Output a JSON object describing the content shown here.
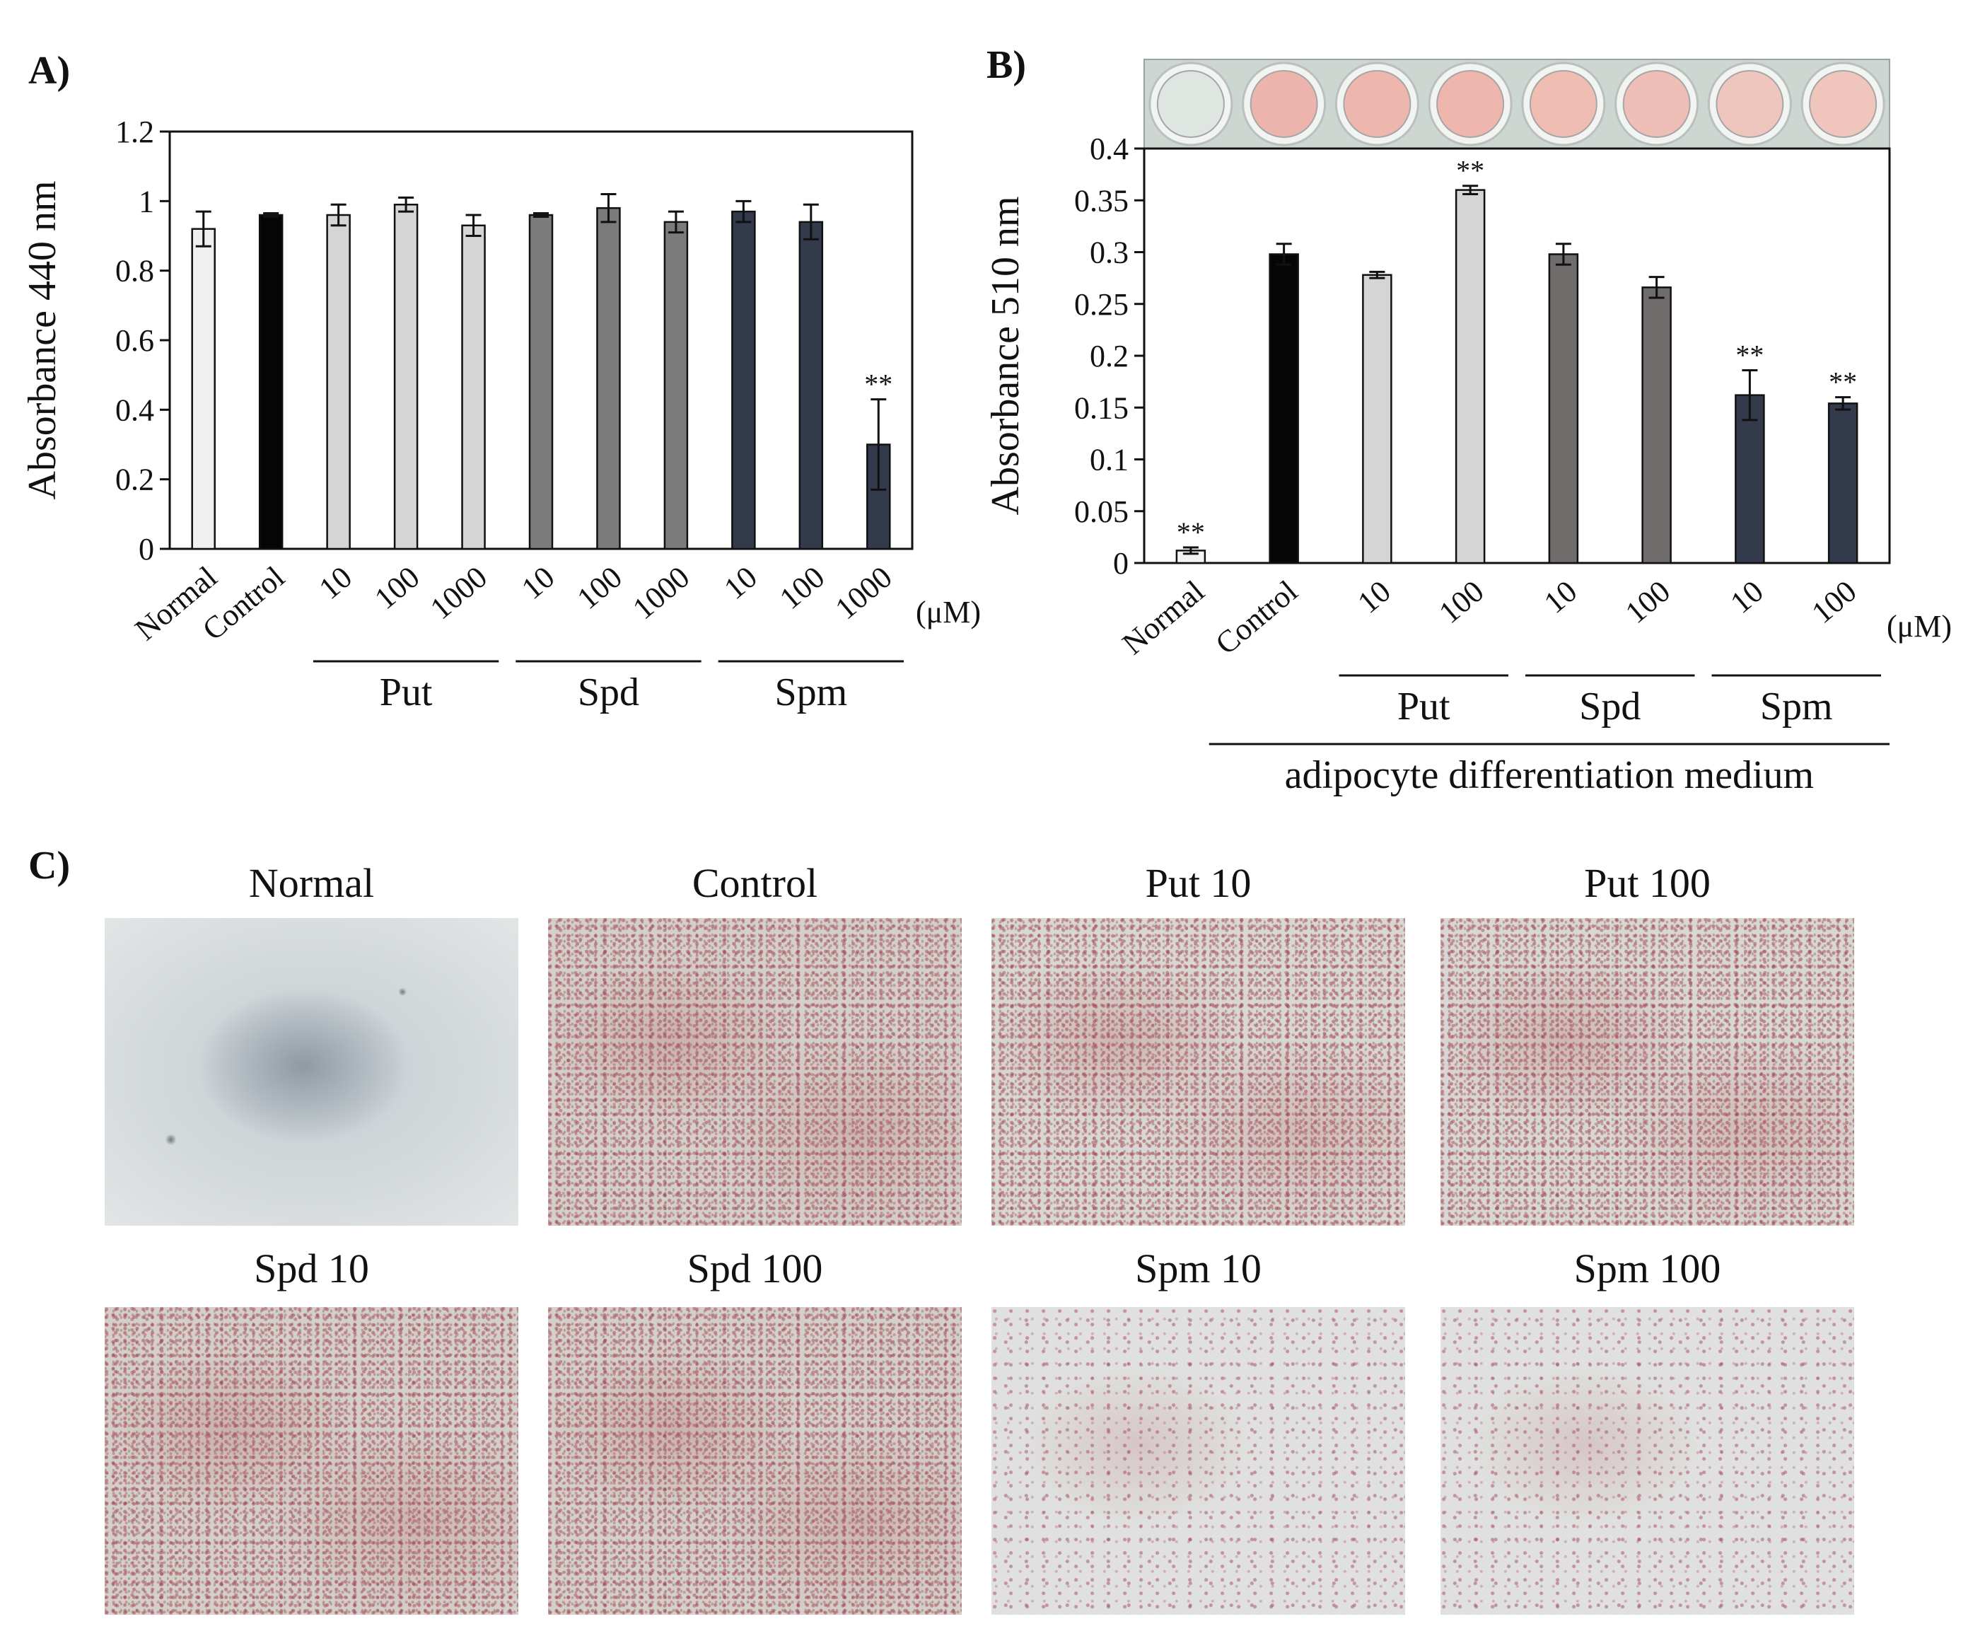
{
  "panel_labels": {
    "a": "A)",
    "b": "B)",
    "c": "C)"
  },
  "chart_data": [
    {
      "type": "bar",
      "panel": "A)",
      "ylabel": "Absorbance 440 nm",
      "ylim": [
        0,
        1.2
      ],
      "yticks": [
        "0",
        "0.2",
        "0.4",
        "0.6",
        "0.8",
        "1",
        "1.2"
      ],
      "categories": [
        "Normal",
        "Control",
        "10",
        "100",
        "1000",
        "10",
        "100",
        "1000",
        "10",
        "100",
        "1000"
      ],
      "values": [
        0.92,
        0.96,
        0.96,
        0.99,
        0.93,
        0.96,
        0.98,
        0.94,
        0.97,
        0.94,
        0.3
      ],
      "errors": [
        0.05,
        0.005,
        0.03,
        0.02,
        0.03,
        0.005,
        0.04,
        0.03,
        0.03,
        0.05,
        0.13
      ],
      "colors": [
        "#efefef",
        "#050505",
        "#d5d5d5",
        "#d5d5d5",
        "#d5d5d5",
        "#7b7b7b",
        "#7b7b7b",
        "#7b7b7b",
        "#323a4c",
        "#323a4c",
        "#323a4c"
      ],
      "annotations": [
        "",
        "",
        "",
        "",
        "",
        "",
        "",
        "",
        "",
        "",
        "**"
      ],
      "unit_label": "(μM)",
      "groups": [
        {
          "label": "Put",
          "from": 2,
          "to": 4
        },
        {
          "label": "Spd",
          "from": 5,
          "to": 7
        },
        {
          "label": "Spm",
          "from": 8,
          "to": 10
        }
      ],
      "legend": "none"
    },
    {
      "type": "bar",
      "panel": "B)",
      "ylabel": "Absorbance 510 nm",
      "ylim": [
        0,
        0.4
      ],
      "yticks": [
        "0",
        "0.05",
        "0.1",
        "0.15",
        "0.2",
        "0.25",
        "0.3",
        "0.35",
        "0.4"
      ],
      "categories": [
        "Normal",
        "Control",
        "10",
        "100",
        "10",
        "100",
        "10",
        "100"
      ],
      "values": [
        0.012,
        0.298,
        0.278,
        0.36,
        0.298,
        0.266,
        0.162,
        0.154
      ],
      "errors": [
        0.003,
        0.01,
        0.003,
        0.004,
        0.01,
        0.01,
        0.024,
        0.006
      ],
      "colors": [
        "#f4f4f4",
        "#050505",
        "#d5d5d5",
        "#d5d5d5",
        "#706c6c",
        "#706c6c",
        "#323a4c",
        "#323a4c"
      ],
      "annotations": [
        "**",
        "",
        "",
        "**",
        "",
        "",
        "**",
        "**"
      ],
      "unit_label": "(μM)",
      "groups": [
        {
          "label": "Put",
          "from": 2,
          "to": 3
        },
        {
          "label": "Spd",
          "from": 4,
          "to": 5
        },
        {
          "label": "Spm",
          "from": 6,
          "to": 7
        }
      ],
      "super_group": {
        "label": "adipocyte differentiation medium",
        "from": 1,
        "to": 7
      },
      "legend": "none"
    }
  ],
  "well_strip": {
    "wells": 8,
    "colors": [
      "#dfe6e2",
      "#ecb4ac",
      "#eeb7ae",
      "#eeb6ad",
      "#f0bdb3",
      "#efbeb6",
      "#efc6be",
      "#efc5bc"
    ]
  },
  "micrographs": [
    {
      "label": "Normal",
      "style": "normal"
    },
    {
      "label": "Control",
      "style": "stain"
    },
    {
      "label": "Put 10",
      "style": "stain"
    },
    {
      "label": "Put 100",
      "style": "stain"
    },
    {
      "label": "Spd 10",
      "style": "stain"
    },
    {
      "label": "Spd 100",
      "style": "stain"
    },
    {
      "label": "Spm 10",
      "style": "sparse"
    },
    {
      "label": "Spm 100",
      "style": "sparse"
    }
  ]
}
